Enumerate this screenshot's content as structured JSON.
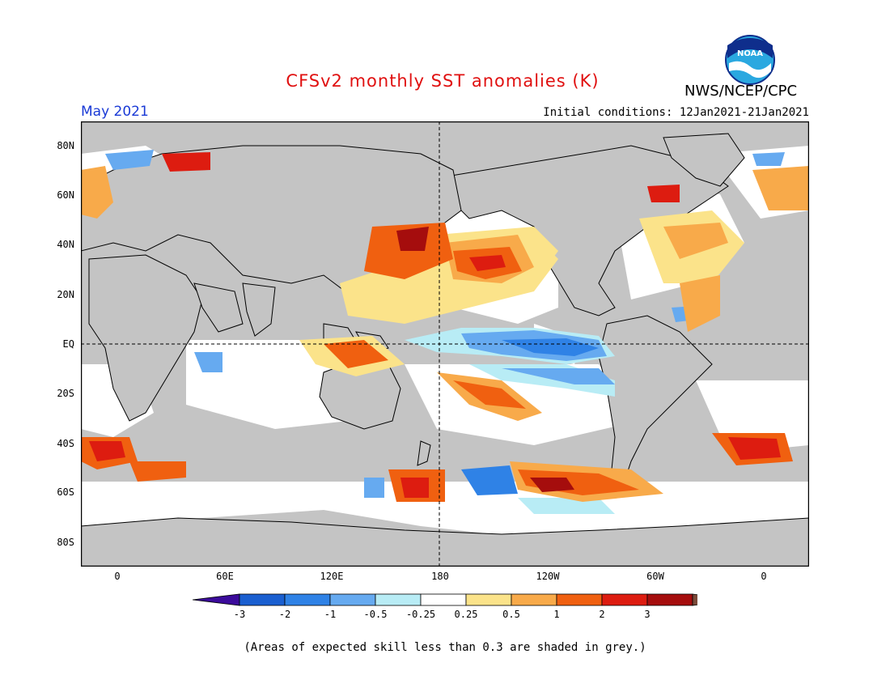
{
  "title": "CFSv2 monthly SST anomalies (K)",
  "organization": "NWS/NCEP/CPC",
  "logo_text": "NOAA",
  "valid_month": "May 2021",
  "initial_conditions": "Initial conditions: 12Jan2021-21Jan2021",
  "lat_labels": [
    "80N",
    "60N",
    "40N",
    "20N",
    "EQ",
    "20S",
    "40S",
    "60S",
    "80S"
  ],
  "lon_labels": [
    "0",
    "60E",
    "120E",
    "180",
    "120W",
    "60W",
    "0"
  ],
  "colorbar": {
    "colors": [
      "#3b0b9b",
      "#1a5fd0",
      "#2f82e6",
      "#66aaf0",
      "#b8ecf5",
      "#ffffff",
      "#fbe38a",
      "#f8aa4a",
      "#f06010",
      "#dd1c10",
      "#a50d0d",
      "#7a4a3a"
    ],
    "labels": [
      "-3",
      "-2",
      "-1",
      "-0.5",
      "-0.25",
      "0.25",
      "0.5",
      "1",
      "2",
      "3"
    ]
  },
  "map_colors": {
    "ocean_skill": "#ffffff",
    "low_skill_grey": "#c4c4c4",
    "land": "#c4c4c4"
  },
  "footnote": "(Areas of expected skill less than 0.3 are shaded in grey.)"
}
